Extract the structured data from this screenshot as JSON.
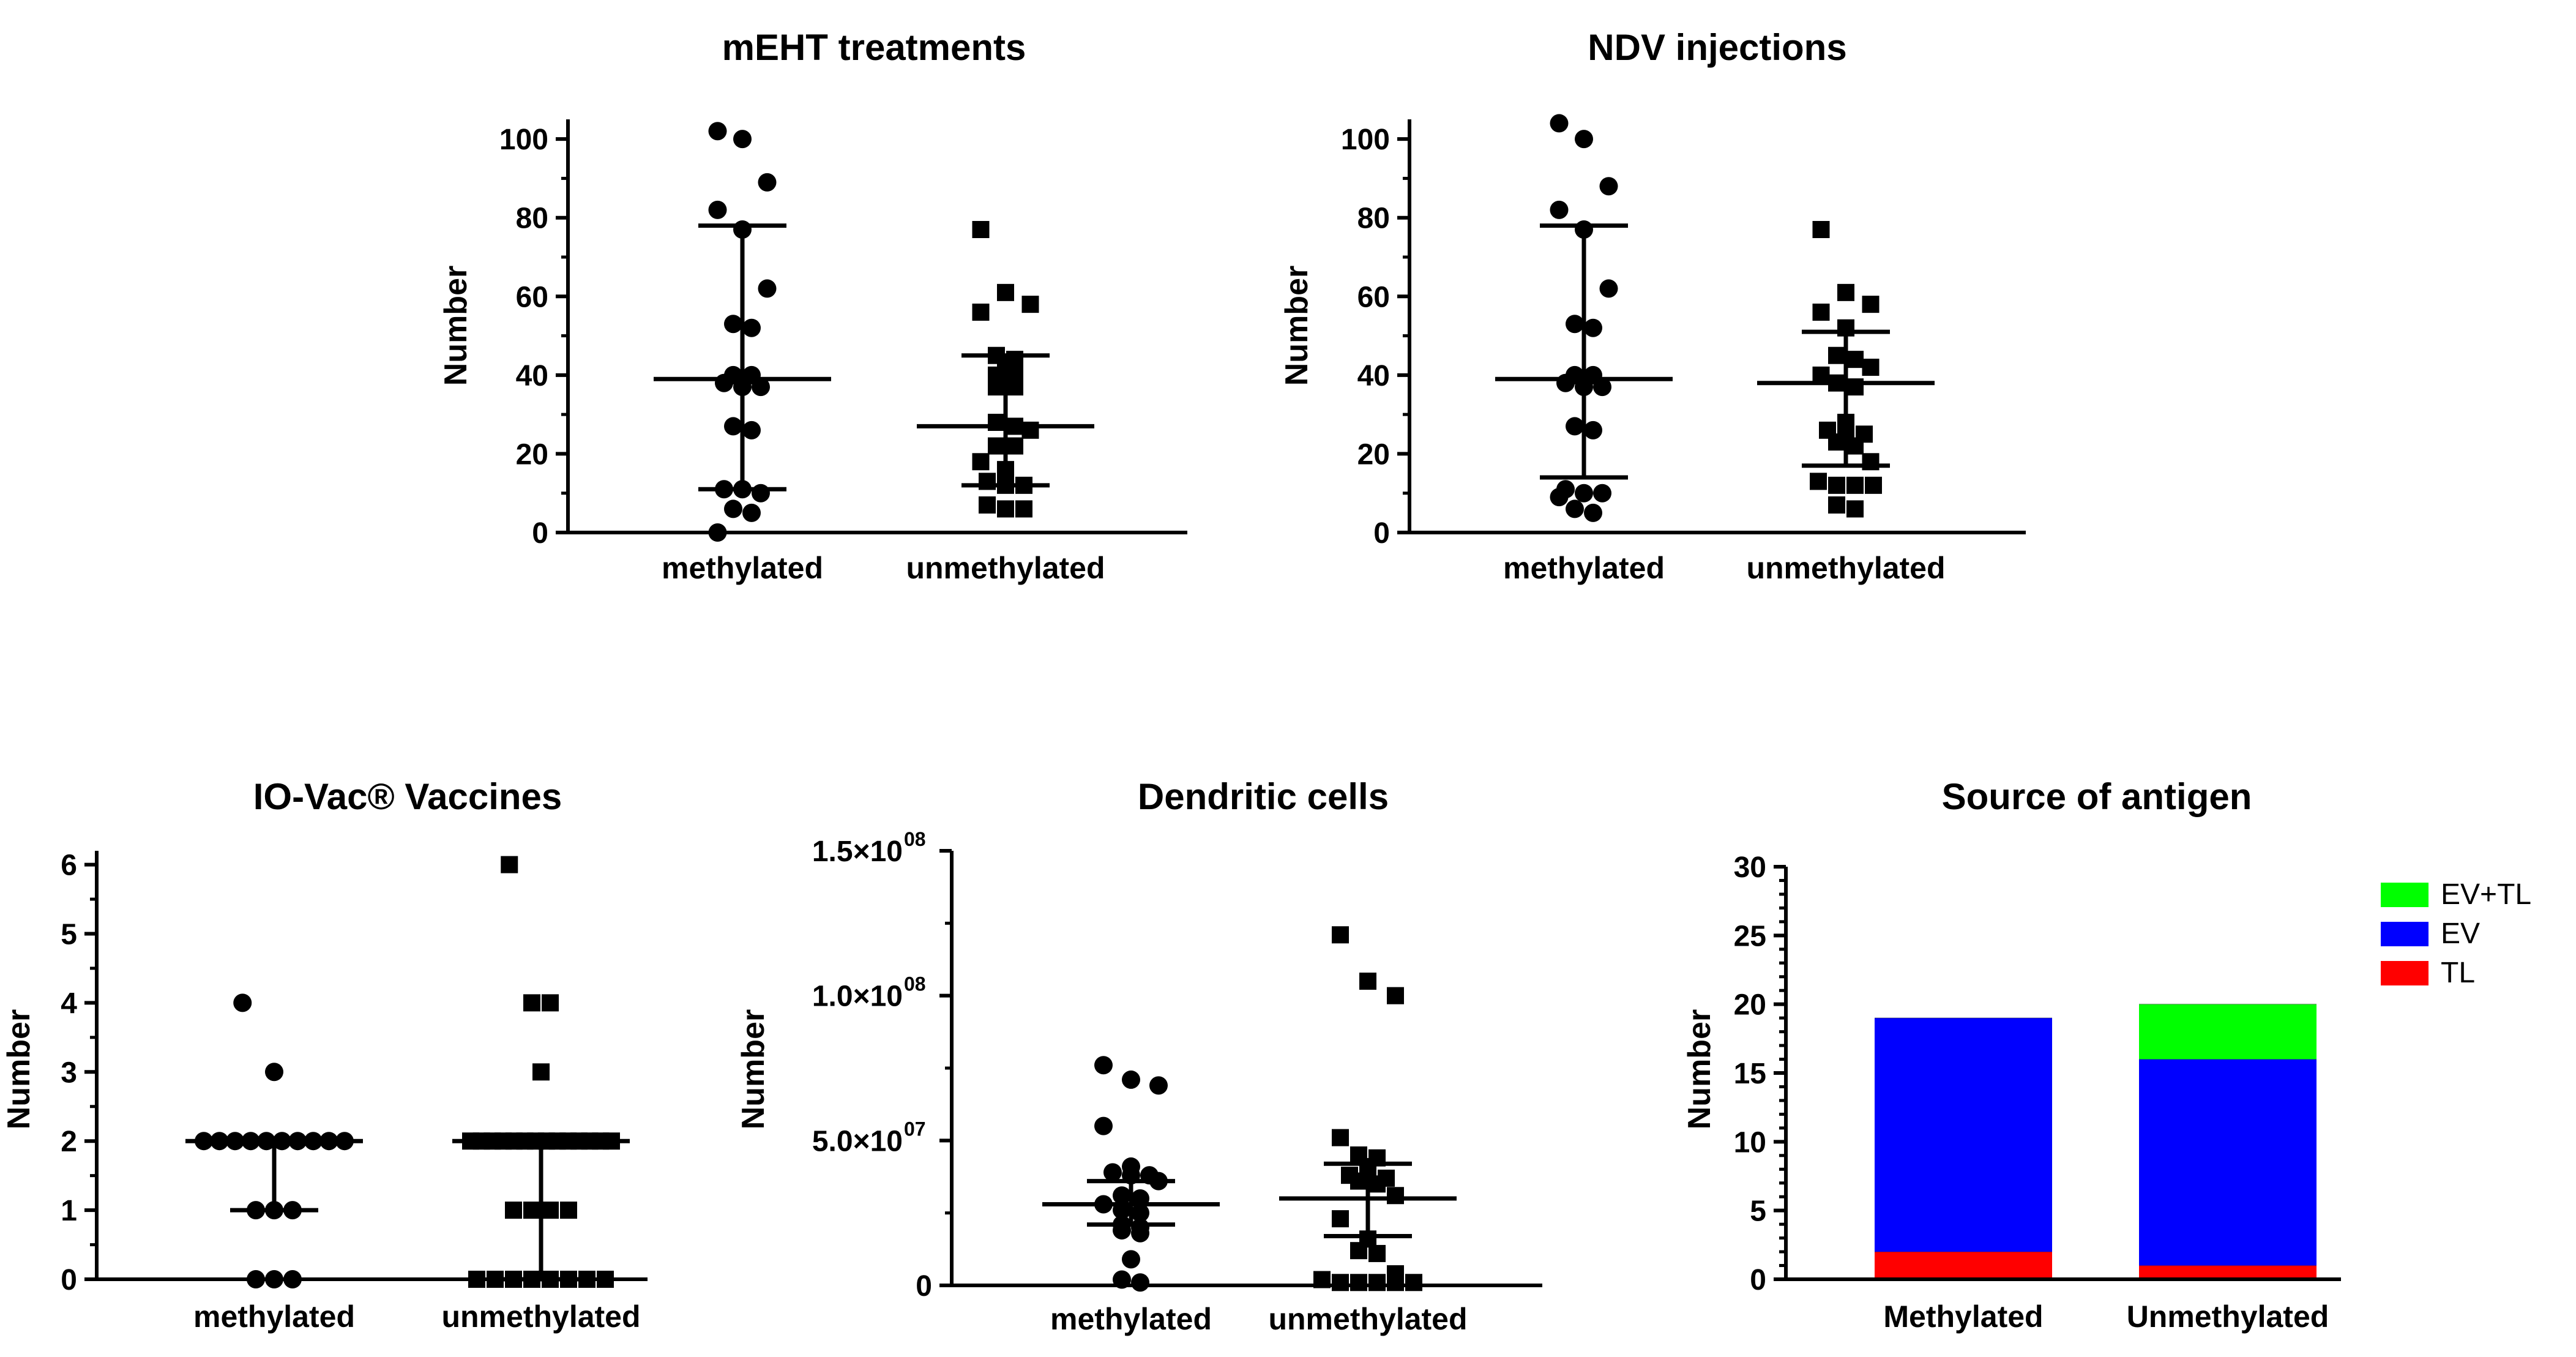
{
  "chart_data": [
    {
      "id": "meht",
      "type": "scatter",
      "title": "mEHT treatments",
      "xlabel": "",
      "ylabel": "Number",
      "ylim": [
        0,
        105
      ],
      "yticks": [
        "0",
        "20",
        "40",
        "60",
        "80",
        "100"
      ],
      "ytick_values": [
        0,
        20,
        40,
        60,
        80,
        100
      ],
      "grid": false,
      "categories": [
        "methylated",
        "unmethylated"
      ],
      "series": [
        {
          "name": "methylated",
          "marker": "circle",
          "values": [
            102,
            100,
            89,
            82,
            77,
            62,
            53,
            52,
            40,
            40,
            38,
            37,
            37,
            27,
            26,
            11,
            11,
            10,
            6,
            5,
            0
          ],
          "mean": 39,
          "sd_low": 11,
          "sd_high": 78
        },
        {
          "name": "unmethylated",
          "marker": "square",
          "values": [
            77,
            61,
            58,
            56,
            45,
            44,
            42,
            40,
            40,
            37,
            37,
            28,
            27,
            26,
            22,
            22,
            18,
            16,
            13,
            12,
            12,
            7,
            6,
            6
          ],
          "mean": 27,
          "sd_low": 12,
          "sd_high": 45
        }
      ]
    },
    {
      "id": "ndv",
      "type": "scatter",
      "title": "NDV injections",
      "xlabel": "",
      "ylabel": "Number",
      "ylim": [
        0,
        105
      ],
      "yticks": [
        "0",
        "20",
        "40",
        "60",
        "80",
        "100"
      ],
      "ytick_values": [
        0,
        20,
        40,
        60,
        80,
        100
      ],
      "grid": false,
      "categories": [
        "methylated",
        "unmethylated"
      ],
      "series": [
        {
          "name": "methylated",
          "marker": "circle",
          "values": [
            104,
            100,
            88,
            82,
            77,
            62,
            53,
            52,
            40,
            40,
            38,
            37,
            37,
            27,
            26,
            11,
            10,
            10,
            9,
            6,
            5
          ],
          "mean": 39,
          "sd_low": 14,
          "sd_high": 78
        },
        {
          "name": "unmethylated",
          "marker": "square",
          "values": [
            77,
            61,
            58,
            56,
            52,
            45,
            44,
            42,
            40,
            38,
            37,
            28,
            26,
            25,
            25,
            23,
            22,
            18,
            13,
            12,
            12,
            12,
            7,
            6
          ],
          "mean": 38,
          "sd_low": 17,
          "sd_high": 51
        }
      ]
    },
    {
      "id": "iovac",
      "type": "scatter",
      "title": "IO-Vac® Vaccines",
      "xlabel": "",
      "ylabel": "Number",
      "ylim": [
        0,
        6.2
      ],
      "yticks": [
        "0",
        "1",
        "2",
        "3",
        "4",
        "5",
        "6"
      ],
      "ytick_values": [
        0,
        1,
        2,
        3,
        4,
        5,
        6
      ],
      "grid": false,
      "categories": [
        "methylated",
        "unmethylated"
      ],
      "series": [
        {
          "name": "methylated",
          "marker": "circle",
          "values": [
            4,
            3,
            2,
            2,
            2,
            2,
            2,
            2,
            2,
            2,
            2,
            2,
            1,
            1,
            1,
            0,
            0,
            0
          ],
          "mean": 2,
          "sd_low": 1,
          "sd_high": 2
        },
        {
          "name": "unmethylated",
          "marker": "square",
          "values": [
            6,
            4,
            4,
            3,
            2,
            2,
            2,
            2,
            2,
            2,
            2,
            2,
            2,
            2,
            2,
            2,
            2,
            2,
            1,
            1,
            1,
            1,
            0,
            0,
            0,
            0,
            0,
            0,
            0,
            0
          ],
          "mean": 2,
          "sd_low": 0,
          "sd_high": 2
        }
      ]
    },
    {
      "id": "dc",
      "type": "scatter",
      "title": "Dendritic cells",
      "xlabel": "",
      "ylabel": "Number",
      "ylim": [
        0,
        150000000
      ],
      "yticks": [
        "0",
        "5.0×10",
        "1.0×10",
        "1.5×10"
      ],
      "ytick_exponent": "07",
      "ytick_exponent_high": "08",
      "ytick_values": [
        0,
        50000000,
        100000000,
        150000000
      ],
      "grid": false,
      "categories": [
        "methylated",
        "unmethylated"
      ],
      "series": [
        {
          "name": "methylated",
          "marker": "circle",
          "values": [
            76000000,
            71000000,
            69000000,
            55000000,
            41000000,
            39000000,
            38000000,
            38000000,
            36000000,
            31000000,
            30000000,
            28000000,
            26000000,
            25000000,
            21000000,
            20000000,
            19000000,
            18000000,
            9000000,
            2000000,
            1000000
          ],
          "mean": 28000000,
          "sd_low": 21000000,
          "sd_high": 36000000
        },
        {
          "name": "unmethylated",
          "marker": "square",
          "values": [
            121000000,
            105000000,
            100000000,
            51000000,
            45000000,
            44000000,
            41000000,
            38000000,
            37000000,
            37000000,
            36000000,
            35000000,
            31000000,
            23000000,
            16000000,
            12000000,
            11000000,
            4000000,
            2000000,
            1000000,
            1000000,
            1000000,
            1000000,
            1000000
          ],
          "mean": 30000000,
          "sd_low": 17000000,
          "sd_high": 42000000
        }
      ]
    },
    {
      "id": "antigen",
      "type": "bar",
      "stacked": true,
      "title": "Source of antigen",
      "xlabel": "",
      "ylabel": "Number",
      "ylim": [
        0,
        30
      ],
      "yticks": [
        "0",
        "5",
        "10",
        "15",
        "20",
        "25",
        "30"
      ],
      "ytick_values": [
        0,
        5,
        10,
        15,
        20,
        25,
        30
      ],
      "grid": false,
      "legend_position": "top-right",
      "categories": [
        "Methylated",
        "Unmethylated"
      ],
      "series": [
        {
          "name": "TL",
          "color": "#ff0000",
          "values": [
            2,
            1
          ]
        },
        {
          "name": "EV",
          "color": "#0000ff",
          "values": [
            17,
            15
          ]
        },
        {
          "name": "EV+TL",
          "color": "#00ff00",
          "values": [
            0,
            4
          ]
        }
      ],
      "legend_order": [
        "EV+TL",
        "EV",
        "TL"
      ]
    }
  ]
}
